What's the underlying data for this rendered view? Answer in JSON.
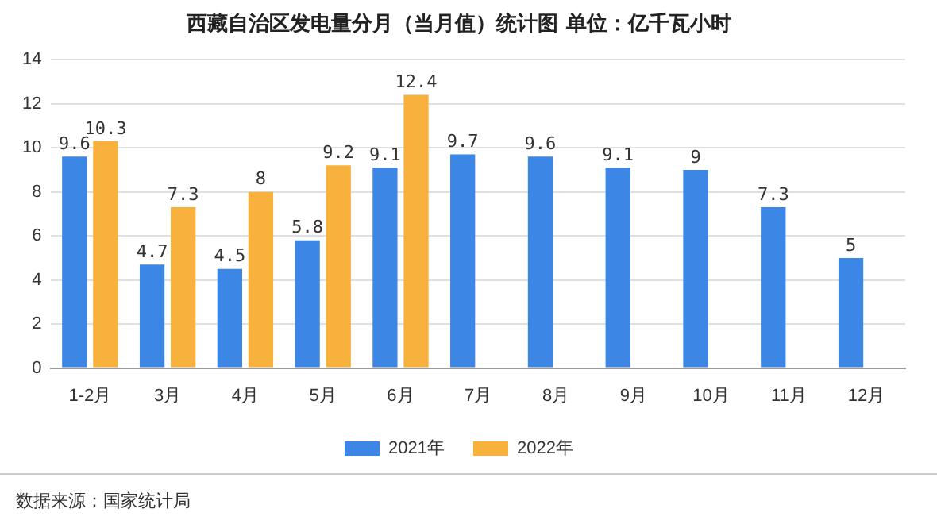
{
  "chart_data": {
    "type": "bar",
    "title": "西藏自治区发电量分月（当月值）统计图 单位：亿千瓦小时",
    "categories": [
      "1-2月",
      "3月",
      "4月",
      "5月",
      "6月",
      "7月",
      "8月",
      "9月",
      "10月",
      "11月",
      "12月"
    ],
    "series": [
      {
        "name": "2021年",
        "color": "#3c86e6",
        "values": [
          9.6,
          4.7,
          4.5,
          5.8,
          9.1,
          9.7,
          9.6,
          9.1,
          9,
          7.3,
          5
        ]
      },
      {
        "name": "2022年",
        "color": "#f9b13e",
        "values": [
          10.3,
          7.3,
          8,
          9.2,
          12.4,
          null,
          null,
          null,
          null,
          null,
          null
        ]
      }
    ],
    "ylim": [
      0,
      14
    ],
    "yticks": [
      0,
      2,
      4,
      6,
      8,
      10,
      12,
      14
    ],
    "grid": "y",
    "legend": "bottom",
    "data_labels": true,
    "annotations": [
      "数据来源：国家统计局"
    ]
  }
}
